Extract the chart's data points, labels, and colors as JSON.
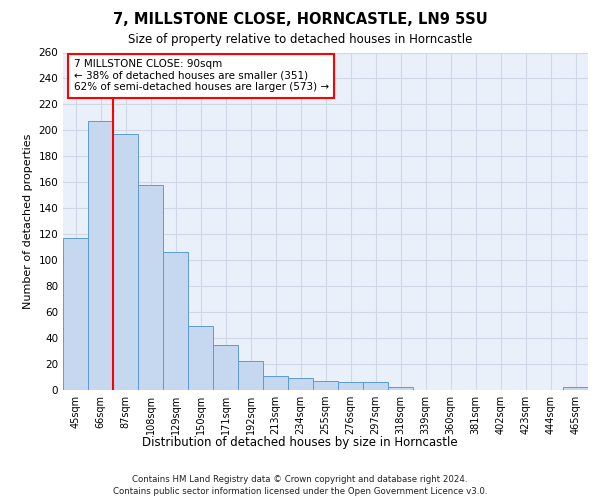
{
  "title1": "7, MILLSTONE CLOSE, HORNCASTLE, LN9 5SU",
  "title2": "Size of property relative to detached houses in Horncastle",
  "xlabel": "Distribution of detached houses by size in Horncastle",
  "ylabel": "Number of detached properties",
  "categories": [
    "45sqm",
    "66sqm",
    "87sqm",
    "108sqm",
    "129sqm",
    "150sqm",
    "171sqm",
    "192sqm",
    "213sqm",
    "234sqm",
    "255sqm",
    "276sqm",
    "297sqm",
    "318sqm",
    "339sqm",
    "360sqm",
    "381sqm",
    "402sqm",
    "423sqm",
    "444sqm",
    "465sqm"
  ],
  "values": [
    117,
    207,
    197,
    158,
    106,
    49,
    35,
    22,
    11,
    9,
    7,
    6,
    6,
    2,
    0,
    0,
    0,
    0,
    0,
    0,
    2
  ],
  "bar_color": "#c5d8f0",
  "bar_edge_color": "#5b9bd5",
  "grid_color": "#d0d8e8",
  "background_color": "#eaf0fa",
  "annotation_text_line1": "7 MILLSTONE CLOSE: 90sqm",
  "annotation_text_line2": "← 38% of detached houses are smaller (351)",
  "annotation_text_line3": "62% of semi-detached houses are larger (573) →",
  "red_line_x": 1.5,
  "ylim": [
    0,
    260
  ],
  "yticks": [
    0,
    20,
    40,
    60,
    80,
    100,
    120,
    140,
    160,
    180,
    200,
    220,
    240,
    260
  ],
  "footer_line1": "Contains HM Land Registry data © Crown copyright and database right 2024.",
  "footer_line2": "Contains public sector information licensed under the Open Government Licence v3.0."
}
